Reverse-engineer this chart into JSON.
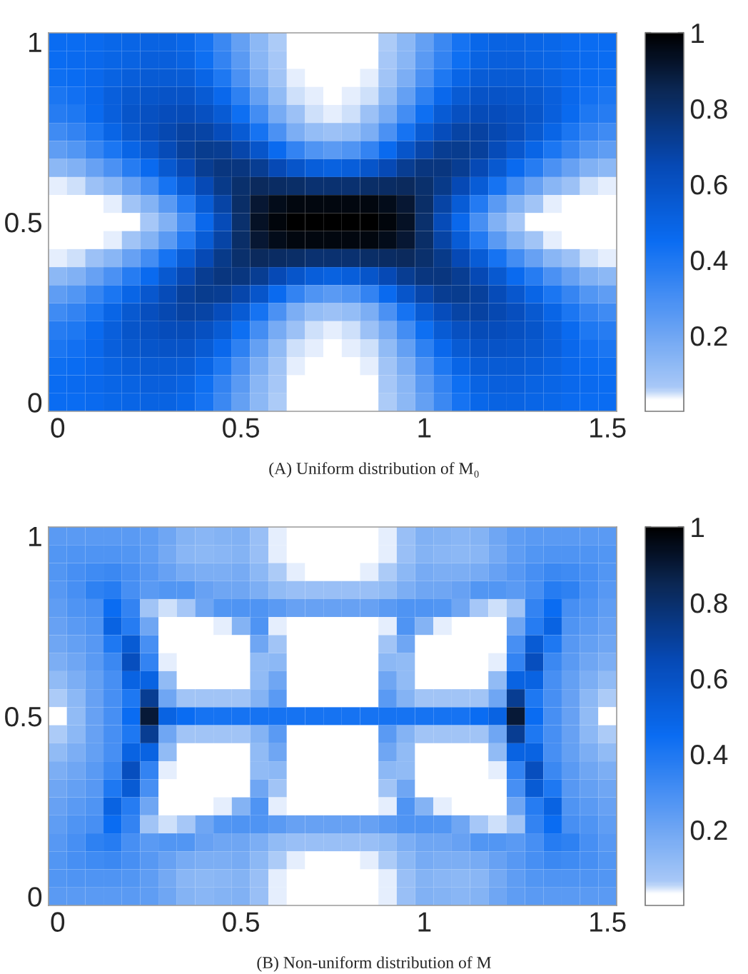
{
  "chart_data": [
    {
      "type": "heatmap",
      "annotations": [
        "(A) Uniform distribution of M₀"
      ],
      "categories": [
        "0",
        null,
        null,
        null,
        null,
        null,
        null,
        null,
        null,
        null,
        "0.5",
        null,
        null,
        null,
        null,
        null,
        null,
        null,
        null,
        null,
        "1",
        null,
        null,
        null,
        null,
        null,
        null,
        null,
        null,
        null,
        "1.5"
      ],
      "y_categories": [
        "1",
        null,
        null,
        null,
        null,
        null,
        null,
        null,
        null,
        null,
        "0.5",
        null,
        null,
        null,
        null,
        null,
        null,
        null,
        null,
        null,
        "0"
      ],
      "clim": [
        0,
        1
      ],
      "cticks": [
        0.2,
        0.4,
        0.6,
        0.8,
        1
      ],
      "cells": [
        [
          0.45,
          0.45,
          0.46,
          0.48,
          0.49,
          0.5,
          0.5,
          0.48,
          0.42,
          0.33,
          0.23,
          0.13,
          0.06,
          0.03,
          0.02,
          0.02,
          0.02,
          0.03,
          0.06,
          0.13,
          0.23,
          0.33,
          0.42,
          0.48,
          0.5,
          0.5,
          0.49,
          0.48,
          0.46,
          0.45,
          0.45
        ],
        [
          0.45,
          0.46,
          0.47,
          0.49,
          0.5,
          0.52,
          0.52,
          0.5,
          0.44,
          0.35,
          0.25,
          0.14,
          0.07,
          0.03,
          0.02,
          0.02,
          0.02,
          0.03,
          0.07,
          0.14,
          0.25,
          0.35,
          0.44,
          0.5,
          0.52,
          0.52,
          0.5,
          0.49,
          0.47,
          0.46,
          0.45
        ],
        [
          0.44,
          0.45,
          0.47,
          0.5,
          0.53,
          0.55,
          0.55,
          0.54,
          0.49,
          0.4,
          0.29,
          0.17,
          0.08,
          0.04,
          0.03,
          0.02,
          0.03,
          0.04,
          0.08,
          0.17,
          0.29,
          0.4,
          0.49,
          0.54,
          0.55,
          0.55,
          0.53,
          0.5,
          0.47,
          0.45,
          0.44
        ],
        [
          0.41,
          0.43,
          0.47,
          0.52,
          0.56,
          0.58,
          0.59,
          0.59,
          0.55,
          0.47,
          0.36,
          0.23,
          0.12,
          0.05,
          0.04,
          0.03,
          0.04,
          0.05,
          0.12,
          0.23,
          0.36,
          0.47,
          0.55,
          0.59,
          0.59,
          0.58,
          0.56,
          0.52,
          0.47,
          0.43,
          0.41
        ],
        [
          0.38,
          0.4,
          0.46,
          0.52,
          0.58,
          0.61,
          0.63,
          0.64,
          0.61,
          0.55,
          0.44,
          0.31,
          0.18,
          0.09,
          0.05,
          0.04,
          0.05,
          0.09,
          0.18,
          0.31,
          0.44,
          0.55,
          0.61,
          0.64,
          0.63,
          0.61,
          0.58,
          0.52,
          0.46,
          0.4,
          0.38
        ],
        [
          0.32,
          0.35,
          0.41,
          0.49,
          0.56,
          0.62,
          0.66,
          0.69,
          0.68,
          0.63,
          0.55,
          0.42,
          0.29,
          0.17,
          0.11,
          0.09,
          0.11,
          0.17,
          0.29,
          0.42,
          0.55,
          0.63,
          0.68,
          0.69,
          0.66,
          0.62,
          0.56,
          0.49,
          0.41,
          0.35,
          0.32
        ],
        [
          0.24,
          0.27,
          0.34,
          0.41,
          0.49,
          0.57,
          0.64,
          0.7,
          0.73,
          0.72,
          0.67,
          0.58,
          0.46,
          0.35,
          0.28,
          0.25,
          0.28,
          0.35,
          0.46,
          0.58,
          0.67,
          0.72,
          0.73,
          0.7,
          0.64,
          0.57,
          0.49,
          0.41,
          0.34,
          0.27,
          0.24
        ],
        [
          0.13,
          0.16,
          0.22,
          0.29,
          0.38,
          0.46,
          0.56,
          0.65,
          0.72,
          0.76,
          0.76,
          0.72,
          0.65,
          0.58,
          0.53,
          0.51,
          0.53,
          0.58,
          0.65,
          0.72,
          0.76,
          0.76,
          0.72,
          0.65,
          0.56,
          0.46,
          0.38,
          0.29,
          0.22,
          0.16,
          0.13
        ],
        [
          0.04,
          0.05,
          0.09,
          0.14,
          0.22,
          0.31,
          0.42,
          0.54,
          0.65,
          0.74,
          0.8,
          0.83,
          0.82,
          0.81,
          0.79,
          0.79,
          0.79,
          0.81,
          0.82,
          0.83,
          0.8,
          0.74,
          0.65,
          0.54,
          0.42,
          0.31,
          0.22,
          0.14,
          0.09,
          0.05,
          0.04
        ],
        [
          0.02,
          0.02,
          0.02,
          0.04,
          0.08,
          0.15,
          0.25,
          0.39,
          0.54,
          0.68,
          0.81,
          0.91,
          0.95,
          0.97,
          0.97,
          0.97,
          0.97,
          0.97,
          0.95,
          0.91,
          0.81,
          0.68,
          0.54,
          0.39,
          0.25,
          0.15,
          0.08,
          0.04,
          0.02,
          0.02,
          0.02
        ],
        [
          0.01,
          0.01,
          0.01,
          0.02,
          0.03,
          0.07,
          0.16,
          0.3,
          0.47,
          0.64,
          0.8,
          0.93,
          0.98,
          1,
          1,
          1,
          1,
          1,
          0.98,
          0.93,
          0.8,
          0.64,
          0.47,
          0.3,
          0.16,
          0.07,
          0.03,
          0.02,
          0.01,
          0.01,
          0.01
        ],
        [
          0.02,
          0.02,
          0.02,
          0.04,
          0.08,
          0.15,
          0.25,
          0.39,
          0.54,
          0.68,
          0.81,
          0.91,
          0.95,
          0.97,
          0.97,
          0.97,
          0.97,
          0.97,
          0.95,
          0.91,
          0.81,
          0.68,
          0.54,
          0.39,
          0.25,
          0.15,
          0.08,
          0.04,
          0.02,
          0.02,
          0.02
        ],
        [
          0.04,
          0.05,
          0.09,
          0.14,
          0.22,
          0.31,
          0.42,
          0.54,
          0.65,
          0.74,
          0.8,
          0.83,
          0.82,
          0.81,
          0.79,
          0.79,
          0.79,
          0.81,
          0.82,
          0.83,
          0.8,
          0.74,
          0.65,
          0.54,
          0.42,
          0.31,
          0.22,
          0.14,
          0.09,
          0.05,
          0.04
        ],
        [
          0.13,
          0.16,
          0.22,
          0.29,
          0.38,
          0.46,
          0.56,
          0.65,
          0.72,
          0.76,
          0.76,
          0.72,
          0.65,
          0.58,
          0.53,
          0.51,
          0.53,
          0.58,
          0.65,
          0.72,
          0.76,
          0.76,
          0.72,
          0.65,
          0.56,
          0.46,
          0.38,
          0.29,
          0.22,
          0.16,
          0.13
        ],
        [
          0.24,
          0.27,
          0.34,
          0.41,
          0.49,
          0.57,
          0.64,
          0.7,
          0.73,
          0.72,
          0.67,
          0.58,
          0.46,
          0.35,
          0.28,
          0.25,
          0.28,
          0.35,
          0.46,
          0.58,
          0.67,
          0.72,
          0.73,
          0.7,
          0.64,
          0.57,
          0.49,
          0.41,
          0.34,
          0.27,
          0.24
        ],
        [
          0.32,
          0.35,
          0.41,
          0.49,
          0.56,
          0.62,
          0.66,
          0.69,
          0.68,
          0.63,
          0.55,
          0.42,
          0.29,
          0.17,
          0.11,
          0.09,
          0.11,
          0.17,
          0.29,
          0.42,
          0.55,
          0.63,
          0.68,
          0.69,
          0.66,
          0.62,
          0.56,
          0.49,
          0.41,
          0.35,
          0.32
        ],
        [
          0.38,
          0.4,
          0.46,
          0.52,
          0.58,
          0.61,
          0.63,
          0.64,
          0.61,
          0.55,
          0.44,
          0.31,
          0.18,
          0.09,
          0.05,
          0.04,
          0.05,
          0.09,
          0.18,
          0.31,
          0.44,
          0.55,
          0.61,
          0.64,
          0.63,
          0.61,
          0.58,
          0.52,
          0.46,
          0.4,
          0.38
        ],
        [
          0.41,
          0.43,
          0.47,
          0.52,
          0.56,
          0.58,
          0.59,
          0.59,
          0.55,
          0.47,
          0.36,
          0.23,
          0.12,
          0.05,
          0.04,
          0.03,
          0.04,
          0.05,
          0.12,
          0.23,
          0.36,
          0.47,
          0.55,
          0.59,
          0.59,
          0.58,
          0.56,
          0.52,
          0.47,
          0.43,
          0.41
        ],
        [
          0.44,
          0.45,
          0.47,
          0.5,
          0.53,
          0.55,
          0.55,
          0.54,
          0.49,
          0.4,
          0.29,
          0.17,
          0.08,
          0.04,
          0.03,
          0.02,
          0.03,
          0.04,
          0.08,
          0.17,
          0.29,
          0.4,
          0.49,
          0.54,
          0.55,
          0.55,
          0.53,
          0.5,
          0.47,
          0.45,
          0.44
        ],
        [
          0.45,
          0.46,
          0.47,
          0.49,
          0.5,
          0.52,
          0.52,
          0.5,
          0.44,
          0.35,
          0.25,
          0.14,
          0.07,
          0.03,
          0.02,
          0.02,
          0.02,
          0.03,
          0.07,
          0.14,
          0.25,
          0.35,
          0.44,
          0.5,
          0.52,
          0.52,
          0.5,
          0.49,
          0.47,
          0.46,
          0.45
        ],
        [
          0.45,
          0.45,
          0.46,
          0.48,
          0.49,
          0.5,
          0.5,
          0.48,
          0.42,
          0.33,
          0.23,
          0.13,
          0.06,
          0.03,
          0.02,
          0.02,
          0.02,
          0.03,
          0.06,
          0.13,
          0.23,
          0.33,
          0.42,
          0.48,
          0.5,
          0.5,
          0.49,
          0.48,
          0.46,
          0.45,
          0.45
        ]
      ]
    },
    {
      "type": "heatmap",
      "annotations": [
        "(B) Non-uniform distribution of M"
      ],
      "categories": [
        "0",
        null,
        null,
        null,
        null,
        null,
        null,
        null,
        null,
        null,
        "0.5",
        null,
        null,
        null,
        null,
        null,
        null,
        null,
        null,
        null,
        "1",
        null,
        null,
        null,
        null,
        null,
        null,
        null,
        null,
        null,
        "1.5"
      ],
      "y_categories": [
        "1",
        null,
        null,
        null,
        null,
        null,
        null,
        null,
        null,
        null,
        "0.5",
        null,
        null,
        null,
        null,
        null,
        null,
        null,
        null,
        null,
        "0"
      ],
      "clim": [
        0,
        1
      ],
      "cticks": [
        0.2,
        0.4,
        0.6,
        0.8,
        1
      ],
      "cells": [
        [
          0.25,
          0.25,
          0.25,
          0.25,
          0.25,
          0.24,
          0.2,
          0.15,
          0.14,
          0.15,
          0.16,
          0.1,
          0.04,
          0.02,
          0.02,
          0.02,
          0.02,
          0.02,
          0.04,
          0.1,
          0.16,
          0.15,
          0.14,
          0.15,
          0.2,
          0.24,
          0.25,
          0.25,
          0.25,
          0.25,
          0.25
        ],
        [
          0.27,
          0.28,
          0.28,
          0.28,
          0.27,
          0.24,
          0.19,
          0.14,
          0.13,
          0.14,
          0.15,
          0.1,
          0.04,
          0.02,
          0.02,
          0.02,
          0.02,
          0.02,
          0.04,
          0.1,
          0.15,
          0.14,
          0.13,
          0.14,
          0.19,
          0.24,
          0.27,
          0.28,
          0.28,
          0.28,
          0.27
        ],
        [
          0.27,
          0.3,
          0.32,
          0.33,
          0.3,
          0.26,
          0.22,
          0.18,
          0.17,
          0.17,
          0.18,
          0.13,
          0.06,
          0.04,
          0.03,
          0.03,
          0.03,
          0.04,
          0.06,
          0.13,
          0.18,
          0.17,
          0.17,
          0.18,
          0.22,
          0.26,
          0.3,
          0.33,
          0.32,
          0.3,
          0.27
        ],
        [
          0.26,
          0.3,
          0.36,
          0.38,
          0.3,
          0.25,
          0.27,
          0.27,
          0.22,
          0.2,
          0.2,
          0.17,
          0.12,
          0.1,
          0.1,
          0.1,
          0.1,
          0.1,
          0.12,
          0.17,
          0.2,
          0.2,
          0.22,
          0.27,
          0.27,
          0.25,
          0.3,
          0.38,
          0.36,
          0.3,
          0.26
        ],
        [
          0.24,
          0.28,
          0.3,
          0.45,
          0.35,
          0.08,
          0.05,
          0.07,
          0.2,
          0.27,
          0.28,
          0.28,
          0.25,
          0.22,
          0.22,
          0.22,
          0.22,
          0.22,
          0.25,
          0.28,
          0.28,
          0.27,
          0.2,
          0.07,
          0.05,
          0.08,
          0.35,
          0.45,
          0.3,
          0.28,
          0.24
        ],
        [
          0.22,
          0.25,
          0.28,
          0.5,
          0.38,
          0.2,
          0.02,
          0.02,
          0.02,
          0.04,
          0.15,
          0.28,
          0.04,
          0.02,
          0.02,
          0.02,
          0.02,
          0.02,
          0.04,
          0.28,
          0.15,
          0.04,
          0.02,
          0.02,
          0.02,
          0.2,
          0.38,
          0.5,
          0.28,
          0.25,
          0.22
        ],
        [
          0.2,
          0.23,
          0.26,
          0.4,
          0.55,
          0.3,
          0.02,
          0.02,
          0.02,
          0.02,
          0.02,
          0.2,
          0.08,
          0.02,
          0.02,
          0.02,
          0.02,
          0.02,
          0.08,
          0.2,
          0.02,
          0.02,
          0.02,
          0.02,
          0.02,
          0.3,
          0.55,
          0.4,
          0.26,
          0.23,
          0.2
        ],
        [
          0.17,
          0.2,
          0.25,
          0.33,
          0.62,
          0.35,
          0.04,
          0.02,
          0.02,
          0.02,
          0.02,
          0.12,
          0.13,
          0.02,
          0.02,
          0.02,
          0.02,
          0.02,
          0.13,
          0.12,
          0.02,
          0.02,
          0.02,
          0.02,
          0.04,
          0.35,
          0.62,
          0.33,
          0.25,
          0.2,
          0.17
        ],
        [
          0.12,
          0.17,
          0.23,
          0.3,
          0.5,
          0.5,
          0.12,
          0.02,
          0.02,
          0.02,
          0.02,
          0.12,
          0.2,
          0.02,
          0.02,
          0.02,
          0.02,
          0.02,
          0.2,
          0.12,
          0.02,
          0.02,
          0.02,
          0.02,
          0.12,
          0.5,
          0.5,
          0.3,
          0.23,
          0.17,
          0.12
        ],
        [
          0.06,
          0.13,
          0.22,
          0.3,
          0.4,
          0.72,
          0.2,
          0.08,
          0.08,
          0.08,
          0.08,
          0.15,
          0.25,
          0.03,
          0.03,
          0.03,
          0.03,
          0.03,
          0.25,
          0.15,
          0.08,
          0.08,
          0.08,
          0.08,
          0.2,
          0.72,
          0.4,
          0.3,
          0.22,
          0.13,
          0.06
        ],
        [
          0.03,
          0.12,
          0.22,
          0.3,
          0.45,
          0.9,
          0.5,
          0.45,
          0.42,
          0.42,
          0.42,
          0.42,
          0.42,
          0.42,
          0.42,
          0.42,
          0.42,
          0.42,
          0.42,
          0.42,
          0.42,
          0.42,
          0.42,
          0.45,
          0.5,
          0.9,
          0.45,
          0.3,
          0.22,
          0.12,
          0.03
        ],
        [
          0.06,
          0.13,
          0.22,
          0.3,
          0.4,
          0.72,
          0.2,
          0.08,
          0.08,
          0.08,
          0.08,
          0.15,
          0.25,
          0.03,
          0.03,
          0.03,
          0.03,
          0.03,
          0.25,
          0.15,
          0.08,
          0.08,
          0.08,
          0.08,
          0.2,
          0.72,
          0.4,
          0.3,
          0.22,
          0.13,
          0.06
        ],
        [
          0.12,
          0.17,
          0.23,
          0.3,
          0.5,
          0.5,
          0.12,
          0.02,
          0.02,
          0.02,
          0.02,
          0.12,
          0.2,
          0.02,
          0.02,
          0.02,
          0.02,
          0.02,
          0.2,
          0.12,
          0.02,
          0.02,
          0.02,
          0.02,
          0.12,
          0.5,
          0.5,
          0.3,
          0.23,
          0.17,
          0.12
        ],
        [
          0.17,
          0.2,
          0.25,
          0.33,
          0.62,
          0.35,
          0.04,
          0.02,
          0.02,
          0.02,
          0.02,
          0.12,
          0.13,
          0.02,
          0.02,
          0.02,
          0.02,
          0.02,
          0.13,
          0.12,
          0.02,
          0.02,
          0.02,
          0.02,
          0.04,
          0.35,
          0.62,
          0.33,
          0.25,
          0.2,
          0.17
        ],
        [
          0.2,
          0.23,
          0.26,
          0.4,
          0.55,
          0.3,
          0.02,
          0.02,
          0.02,
          0.02,
          0.02,
          0.2,
          0.08,
          0.02,
          0.02,
          0.02,
          0.02,
          0.02,
          0.08,
          0.2,
          0.02,
          0.02,
          0.02,
          0.02,
          0.02,
          0.3,
          0.55,
          0.4,
          0.26,
          0.23,
          0.2
        ],
        [
          0.22,
          0.25,
          0.28,
          0.5,
          0.38,
          0.2,
          0.02,
          0.02,
          0.02,
          0.04,
          0.15,
          0.28,
          0.04,
          0.02,
          0.02,
          0.02,
          0.02,
          0.02,
          0.04,
          0.28,
          0.15,
          0.04,
          0.02,
          0.02,
          0.02,
          0.2,
          0.38,
          0.5,
          0.28,
          0.25,
          0.22
        ],
        [
          0.24,
          0.28,
          0.3,
          0.45,
          0.35,
          0.08,
          0.05,
          0.07,
          0.2,
          0.27,
          0.28,
          0.28,
          0.25,
          0.22,
          0.22,
          0.22,
          0.22,
          0.22,
          0.25,
          0.28,
          0.28,
          0.27,
          0.2,
          0.07,
          0.05,
          0.08,
          0.35,
          0.45,
          0.3,
          0.28,
          0.24
        ],
        [
          0.26,
          0.3,
          0.36,
          0.38,
          0.3,
          0.25,
          0.27,
          0.27,
          0.22,
          0.2,
          0.2,
          0.17,
          0.12,
          0.1,
          0.1,
          0.1,
          0.1,
          0.1,
          0.12,
          0.17,
          0.2,
          0.2,
          0.22,
          0.27,
          0.27,
          0.25,
          0.3,
          0.38,
          0.36,
          0.3,
          0.26
        ],
        [
          0.27,
          0.3,
          0.32,
          0.33,
          0.3,
          0.26,
          0.22,
          0.18,
          0.17,
          0.17,
          0.18,
          0.13,
          0.06,
          0.04,
          0.03,
          0.03,
          0.03,
          0.04,
          0.06,
          0.13,
          0.18,
          0.17,
          0.17,
          0.18,
          0.22,
          0.26,
          0.3,
          0.33,
          0.32,
          0.3,
          0.27
        ],
        [
          0.27,
          0.28,
          0.28,
          0.28,
          0.27,
          0.24,
          0.19,
          0.14,
          0.13,
          0.14,
          0.15,
          0.1,
          0.04,
          0.02,
          0.02,
          0.02,
          0.02,
          0.02,
          0.04,
          0.1,
          0.15,
          0.14,
          0.13,
          0.14,
          0.19,
          0.24,
          0.27,
          0.28,
          0.28,
          0.28,
          0.27
        ],
        [
          0.25,
          0.25,
          0.25,
          0.25,
          0.25,
          0.24,
          0.2,
          0.15,
          0.14,
          0.15,
          0.16,
          0.1,
          0.04,
          0.02,
          0.02,
          0.02,
          0.02,
          0.02,
          0.04,
          0.1,
          0.16,
          0.15,
          0.14,
          0.15,
          0.2,
          0.24,
          0.25,
          0.25,
          0.25,
          0.25,
          0.25
        ]
      ]
    }
  ]
}
